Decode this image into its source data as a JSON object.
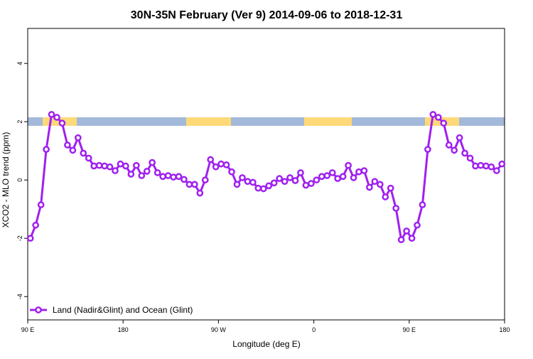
{
  "chart_data": {
    "type": "line",
    "title": "30N-35N February (Ver 9)   2014-09-06 to 2018-12-31",
    "x_label": "Longitude (deg E)",
    "y_label": "XCO2 - MLO trend (ppm)",
    "x": [
      92.5,
      97.5,
      102.5,
      107.5,
      112.5,
      117.5,
      122.5,
      127.5,
      132.5,
      137.5,
      142.5,
      147.5,
      152.5,
      157.5,
      162.5,
      167.5,
      172.5,
      177.5,
      182.5,
      187.5,
      192.5,
      197.5,
      202.5,
      207.5,
      212.5,
      217.5,
      222.5,
      227.5,
      232.5,
      237.5,
      242.5,
      247.5,
      252.5,
      257.5,
      262.5,
      267.5,
      272.5,
      277.5,
      282.5,
      287.5,
      292.5,
      297.5,
      302.5,
      307.5,
      312.5,
      317.5,
      322.5,
      327.5,
      332.5,
      337.5,
      342.5,
      347.5,
      352.5,
      357.5,
      362.5,
      367.5,
      372.5,
      377.5,
      382.5,
      387.5,
      392.5,
      397.5,
      402.5,
      407.5,
      412.5,
      417.5,
      422.5,
      427.5,
      432.5,
      437.5,
      442.5,
      447.5,
      452.5,
      457.5,
      462.5,
      467.5,
      472.5,
      477.5,
      482.5,
      487.5,
      492.5,
      497.5,
      502.5,
      507.5,
      512.5,
      517.5,
      522.5,
      527.5,
      532.5,
      537.5
    ],
    "series": [
      {
        "name": "Land (Nadir&Glint) and Ocean (Glint)",
        "color": "#a020f0",
        "values": [
          -2.0,
          -1.55,
          -0.85,
          1.05,
          2.25,
          2.15,
          1.95,
          1.2,
          1.02,
          1.45,
          0.92,
          0.75,
          0.48,
          0.5,
          0.48,
          0.45,
          0.32,
          0.55,
          0.48,
          0.2,
          0.5,
          0.15,
          0.3,
          0.6,
          0.25,
          0.12,
          0.15,
          0.1,
          0.12,
          0.02,
          -0.15,
          -0.15,
          -0.45,
          0.0,
          0.7,
          0.45,
          0.55,
          0.52,
          0.28,
          -0.15,
          0.08,
          -0.05,
          -0.08,
          -0.28,
          -0.3,
          -0.2,
          -0.1,
          0.05,
          -0.05,
          0.08,
          -0.02,
          0.25,
          -0.18,
          -0.12,
          0.0,
          0.12,
          0.15,
          0.25,
          0.05,
          0.12,
          0.5,
          0.08,
          0.28,
          0.32,
          -0.25,
          -0.05,
          -0.15,
          -0.58,
          -0.28,
          -0.97,
          -2.05,
          -1.75,
          -2.0,
          -1.55,
          -0.85,
          1.05,
          2.25,
          2.15,
          1.95,
          1.2,
          1.02,
          1.45,
          0.92,
          0.75,
          0.48,
          0.5,
          0.48,
          0.45,
          0.32,
          0.55
        ]
      }
    ],
    "xlim": [
      90,
      540
    ],
    "xticks": [
      {
        "value": 90,
        "label": "90 E"
      },
      {
        "value": 180,
        "label": "180"
      },
      {
        "value": 270,
        "label": "90 W"
      },
      {
        "value": 360,
        "label": "0"
      },
      {
        "value": 450,
        "label": "90 E"
      },
      {
        "value": 540,
        "label": "180"
      }
    ],
    "ylim": [
      -4.8,
      5.2
    ],
    "yticks": [
      -4,
      -2,
      0,
      2,
      4
    ],
    "legend": "bottom-left"
  }
}
